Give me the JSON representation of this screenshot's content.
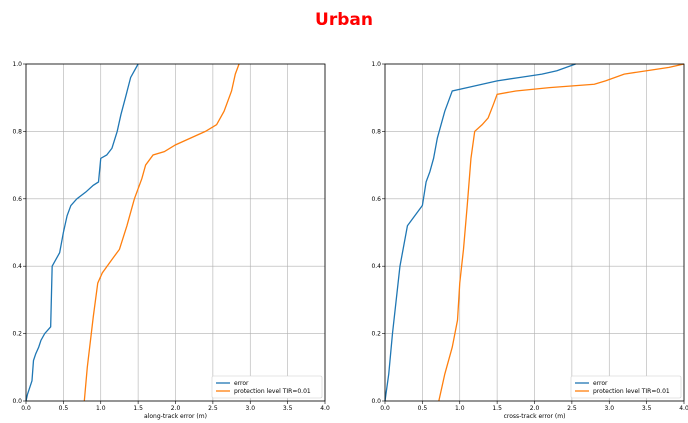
{
  "figure": {
    "title": "Urban",
    "title_color": "#ff0000"
  },
  "chart_data": [
    {
      "type": "line",
      "title": "",
      "xlabel": "along-track error (m)",
      "ylabel": "",
      "xlim": [
        0.0,
        4.0
      ],
      "ylim": [
        0.0,
        1.0
      ],
      "xticks": [
        "0.0",
        "0.5",
        "1.0",
        "1.5",
        "2.0",
        "2.5",
        "3.0",
        "3.5",
        "4.0"
      ],
      "yticks": [
        "0.0",
        "0.2",
        "0.4",
        "0.6",
        "0.8",
        "1.0"
      ],
      "grid": true,
      "legend_position": "lower-right",
      "series": [
        {
          "name": "error",
          "color": "#1f77b4",
          "points": [
            [
              0.0,
              0.0
            ],
            [
              0.02,
              0.02
            ],
            [
              0.05,
              0.04
            ],
            [
              0.08,
              0.06
            ],
            [
              0.1,
              0.12
            ],
            [
              0.13,
              0.14
            ],
            [
              0.17,
              0.16
            ],
            [
              0.2,
              0.18
            ],
            [
              0.25,
              0.2
            ],
            [
              0.33,
              0.22
            ],
            [
              0.35,
              0.4
            ],
            [
              0.4,
              0.42
            ],
            [
              0.45,
              0.44
            ],
            [
              0.5,
              0.5
            ],
            [
              0.55,
              0.55
            ],
            [
              0.6,
              0.58
            ],
            [
              0.68,
              0.6
            ],
            [
              0.8,
              0.62
            ],
            [
              0.9,
              0.64
            ],
            [
              0.97,
              0.65
            ],
            [
              1.0,
              0.72
            ],
            [
              1.08,
              0.73
            ],
            [
              1.15,
              0.75
            ],
            [
              1.22,
              0.8
            ],
            [
              1.27,
              0.85
            ],
            [
              1.33,
              0.9
            ],
            [
              1.4,
              0.96
            ],
            [
              1.5,
              1.0
            ]
          ]
        },
        {
          "name": "protection level TIR=0.01",
          "color": "#ff7f0e",
          "points": [
            [
              0.78,
              0.0
            ],
            [
              0.82,
              0.1
            ],
            [
              0.9,
              0.25
            ],
            [
              0.96,
              0.35
            ],
            [
              1.02,
              0.38
            ],
            [
              1.15,
              0.42
            ],
            [
              1.25,
              0.45
            ],
            [
              1.35,
              0.52
            ],
            [
              1.45,
              0.6
            ],
            [
              1.55,
              0.66
            ],
            [
              1.6,
              0.7
            ],
            [
              1.7,
              0.73
            ],
            [
              1.85,
              0.74
            ],
            [
              2.0,
              0.76
            ],
            [
              2.2,
              0.78
            ],
            [
              2.4,
              0.8
            ],
            [
              2.55,
              0.82
            ],
            [
              2.65,
              0.86
            ],
            [
              2.75,
              0.92
            ],
            [
              2.8,
              0.97
            ],
            [
              2.85,
              1.0
            ]
          ]
        }
      ]
    },
    {
      "type": "line",
      "title": "",
      "xlabel": "cross-track error (m)",
      "ylabel": "",
      "xlim": [
        0.0,
        4.0
      ],
      "ylim": [
        0.0,
        1.0
      ],
      "xticks": [
        "0.0",
        "0.5",
        "1.0",
        "1.5",
        "2.0",
        "2.5",
        "3.0",
        "3.5",
        "4.0"
      ],
      "yticks": [
        "0.0",
        "0.2",
        "0.4",
        "0.6",
        "0.8",
        "1.0"
      ],
      "grid": true,
      "legend_position": "lower-right",
      "series": [
        {
          "name": "error",
          "color": "#1f77b4",
          "points": [
            [
              0.0,
              0.0
            ],
            [
              0.05,
              0.08
            ],
            [
              0.1,
              0.2
            ],
            [
              0.15,
              0.3
            ],
            [
              0.2,
              0.4
            ],
            [
              0.25,
              0.46
            ],
            [
              0.3,
              0.52
            ],
            [
              0.4,
              0.55
            ],
            [
              0.5,
              0.58
            ],
            [
              0.55,
              0.65
            ],
            [
              0.6,
              0.68
            ],
            [
              0.65,
              0.72
            ],
            [
              0.7,
              0.78
            ],
            [
              0.75,
              0.82
            ],
            [
              0.8,
              0.86
            ],
            [
              0.85,
              0.89
            ],
            [
              0.9,
              0.92
            ],
            [
              1.1,
              0.93
            ],
            [
              1.3,
              0.94
            ],
            [
              1.5,
              0.95
            ],
            [
              1.8,
              0.96
            ],
            [
              2.1,
              0.97
            ],
            [
              2.3,
              0.98
            ],
            [
              2.55,
              1.0
            ]
          ]
        },
        {
          "name": "protection level TIR=0.01",
          "color": "#ff7f0e",
          "points": [
            [
              0.72,
              0.0
            ],
            [
              0.8,
              0.08
            ],
            [
              0.9,
              0.16
            ],
            [
              0.97,
              0.24
            ],
            [
              1.0,
              0.35
            ],
            [
              1.05,
              0.45
            ],
            [
              1.1,
              0.58
            ],
            [
              1.15,
              0.72
            ],
            [
              1.2,
              0.8
            ],
            [
              1.3,
              0.82
            ],
            [
              1.38,
              0.84
            ],
            [
              1.45,
              0.88
            ],
            [
              1.5,
              0.91
            ],
            [
              1.75,
              0.92
            ],
            [
              2.2,
              0.93
            ],
            [
              2.8,
              0.94
            ],
            [
              2.95,
              0.95
            ],
            [
              3.2,
              0.97
            ],
            [
              3.5,
              0.98
            ],
            [
              3.8,
              0.99
            ],
            [
              4.0,
              1.0
            ]
          ]
        }
      ]
    }
  ]
}
